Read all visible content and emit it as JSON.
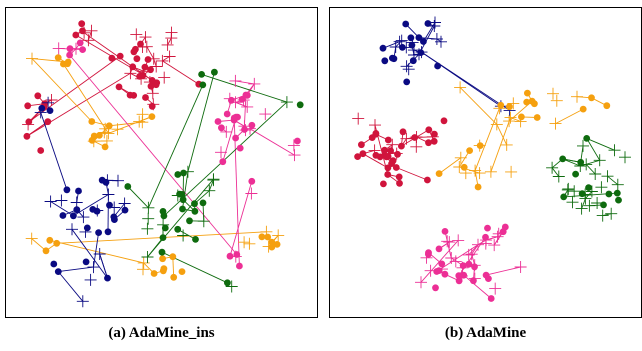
{
  "colors": {
    "crimson": "#d0143c",
    "orange": "#f5a00f",
    "pink": "#ec2f95",
    "navy": "#0a0a82",
    "green": "#0e6b0e"
  },
  "chart_data": [
    {
      "type": "scatter",
      "caption": "(a) AdaMine_ins",
      "xlim": [
        0,
        100
      ],
      "ylim": [
        0,
        100
      ],
      "grid": false,
      "series": [
        {
          "color": "crimson",
          "clusters": [
            [
              45,
              82,
              9,
              11,
              40
            ],
            [
              9,
              63,
              4,
              8,
              10
            ],
            [
              28,
              93,
              5,
              4,
              6
            ]
          ]
        },
        {
          "color": "orange",
          "clusters": [
            [
              30,
              60,
              6,
              4,
              12
            ],
            [
              84,
              24,
              5,
              3,
              10
            ],
            [
              50,
              15,
              8,
              3,
              9
            ],
            [
              12,
              22,
              3,
              3,
              4
            ],
            [
              43,
              65,
              3,
              3,
              4
            ],
            [
              18,
              84,
              4,
              3,
              5
            ]
          ]
        },
        {
          "color": "pink",
          "clusters": [
            [
              75,
              65,
              6,
              12,
              28
            ],
            [
              21,
              88,
              5,
              3,
              6
            ],
            [
              75,
              18,
              3,
              3,
              4
            ],
            [
              95,
              55,
              2,
              3,
              3
            ],
            [
              79,
              42,
              2,
              2,
              2
            ]
          ]
        },
        {
          "color": "navy",
          "clusters": [
            [
              28,
              35,
              10,
              9,
              28
            ],
            [
              12,
              68,
              3,
              4,
              4
            ],
            [
              28,
              15,
              4,
              4,
              6
            ],
            [
              15,
              14,
              2,
              2,
              2
            ]
          ]
        },
        {
          "color": "green",
          "clusters": [
            [
              56,
              32,
              10,
              14,
              30
            ],
            [
              66,
              81,
              2,
              3,
              3
            ],
            [
              94,
              70,
              2,
              2,
              2
            ],
            [
              74,
              9,
              2,
              2,
              2
            ]
          ]
        }
      ]
    },
    {
      "type": "scatter",
      "caption": "(b) AdaMine",
      "xlim": [
        0,
        100
      ],
      "ylim": [
        0,
        100
      ],
      "grid": false,
      "series": [
        {
          "color": "navy",
          "clusters": [
            [
              26,
              88,
              7,
              6,
              30
            ],
            [
              56,
              69,
              2,
              2,
              2
            ]
          ]
        },
        {
          "color": "crimson",
          "clusters": [
            [
              17,
              53,
              9,
              7,
              35
            ],
            [
              32,
              59,
              4,
              3,
              6
            ]
          ]
        },
        {
          "color": "orange",
          "clusters": [
            [
              60,
              67,
              10,
              5,
              18
            ],
            [
              45,
              48,
              9,
              5,
              14
            ],
            [
              84,
              70,
              4,
              3,
              4
            ]
          ]
        },
        {
          "color": "green",
          "clusters": [
            [
              85,
              43,
              8,
              9,
              35
            ]
          ]
        },
        {
          "color": "pink",
          "clusters": [
            [
              42,
              15,
              10,
              8,
              40
            ],
            [
              52,
              27,
              4,
              3,
              6
            ]
          ]
        }
      ]
    }
  ]
}
